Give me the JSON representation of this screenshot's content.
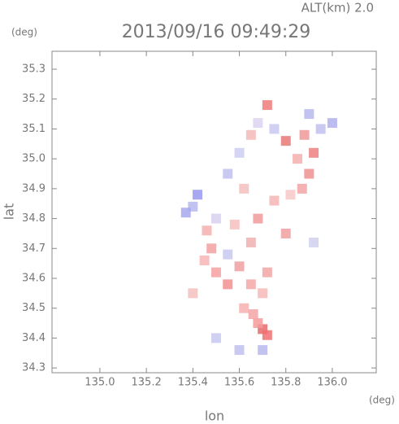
{
  "chart_data": {
    "type": "scatter",
    "title": "2013/09/16 09:49:29",
    "subtitle": "ALT(km) 2.0",
    "y_unit": "(deg)",
    "x_unit": "(deg)",
    "xlabel": "lon",
    "ylabel": "lat",
    "xlim": [
      134.794,
      136.189
    ],
    "ylim": [
      34.284,
      35.36
    ],
    "xticks": [
      {
        "value": 135.0,
        "label": "135.0"
      },
      135.2,
      135.4,
      135.6,
      135.8,
      {
        "value": 136.0,
        "label": "136.0"
      }
    ],
    "yticks": [
      34.3,
      34.4,
      34.5,
      34.6,
      34.7,
      34.8,
      34.9,
      {
        "value": 35.0,
        "label": "35.0"
      },
      35.1,
      35.2,
      35.3
    ],
    "x": [
      135.7,
      135.72,
      135.68,
      135.66,
      135.62,
      135.55,
      135.5,
      135.45,
      135.48,
      135.55,
      135.6,
      135.65,
      135.7,
      135.72,
      135.65,
      135.58,
      135.5,
      135.46,
      135.4,
      135.37,
      135.42,
      135.68,
      135.75,
      135.82,
      135.87,
      135.9,
      135.92,
      135.85,
      135.8,
      135.88,
      135.95,
      136.0,
      135.9,
      135.75,
      135.68,
      135.72,
      135.65,
      135.6,
      135.55,
      135.62,
      135.5,
      135.6,
      135.7,
      135.8,
      135.92,
      135.4
    ],
    "y": [
      34.43,
      34.41,
      34.45,
      34.48,
      34.5,
      34.58,
      34.62,
      34.66,
      34.7,
      34.68,
      34.64,
      34.58,
      34.55,
      34.62,
      34.72,
      34.78,
      34.8,
      34.76,
      34.84,
      34.82,
      34.88,
      34.8,
      34.86,
      34.88,
      34.9,
      34.95,
      35.02,
      35.0,
      35.06,
      35.08,
      35.1,
      35.12,
      35.15,
      35.1,
      35.12,
      35.18,
      35.08,
      35.02,
      34.95,
      34.9,
      34.4,
      34.36,
      34.36,
      34.75,
      34.72,
      34.55
    ],
    "colors": [
      "#e86a6a",
      "#f07070",
      "#f59a9a",
      "#f5a5a5",
      "#f7b0b0",
      "#f39090",
      "#f5a0a0",
      "#f7b5b5",
      "#f3a0a0",
      "#c8c8f0",
      "#f0a0a0",
      "#f5a8a8",
      "#f7b8b8",
      "#f3a5a5",
      "#f0b0b0",
      "#f7c0c0",
      "#d8d0f0",
      "#f5b0b0",
      "#b8b8f0",
      "#a8a8f0",
      "#9a9aee",
      "#f09a9a",
      "#f5b5b5",
      "#f7c8c8",
      "#f3a5a5",
      "#f09090",
      "#ec8080",
      "#f5b0b0",
      "#e87878",
      "#f09898",
      "#c0c0f0",
      "#b0b0ee",
      "#b8b8f0",
      "#c8c8f0",
      "#dcd4f0",
      "#f07a7a",
      "#f5b8b8",
      "#ccccf2",
      "#c0c0f0",
      "#f5c0c0",
      "#c8c8f0",
      "#c0c0f0",
      "#b8b8ee",
      "#f0a0a0",
      "#d0d0f0",
      "#f5c0c0"
    ]
  }
}
